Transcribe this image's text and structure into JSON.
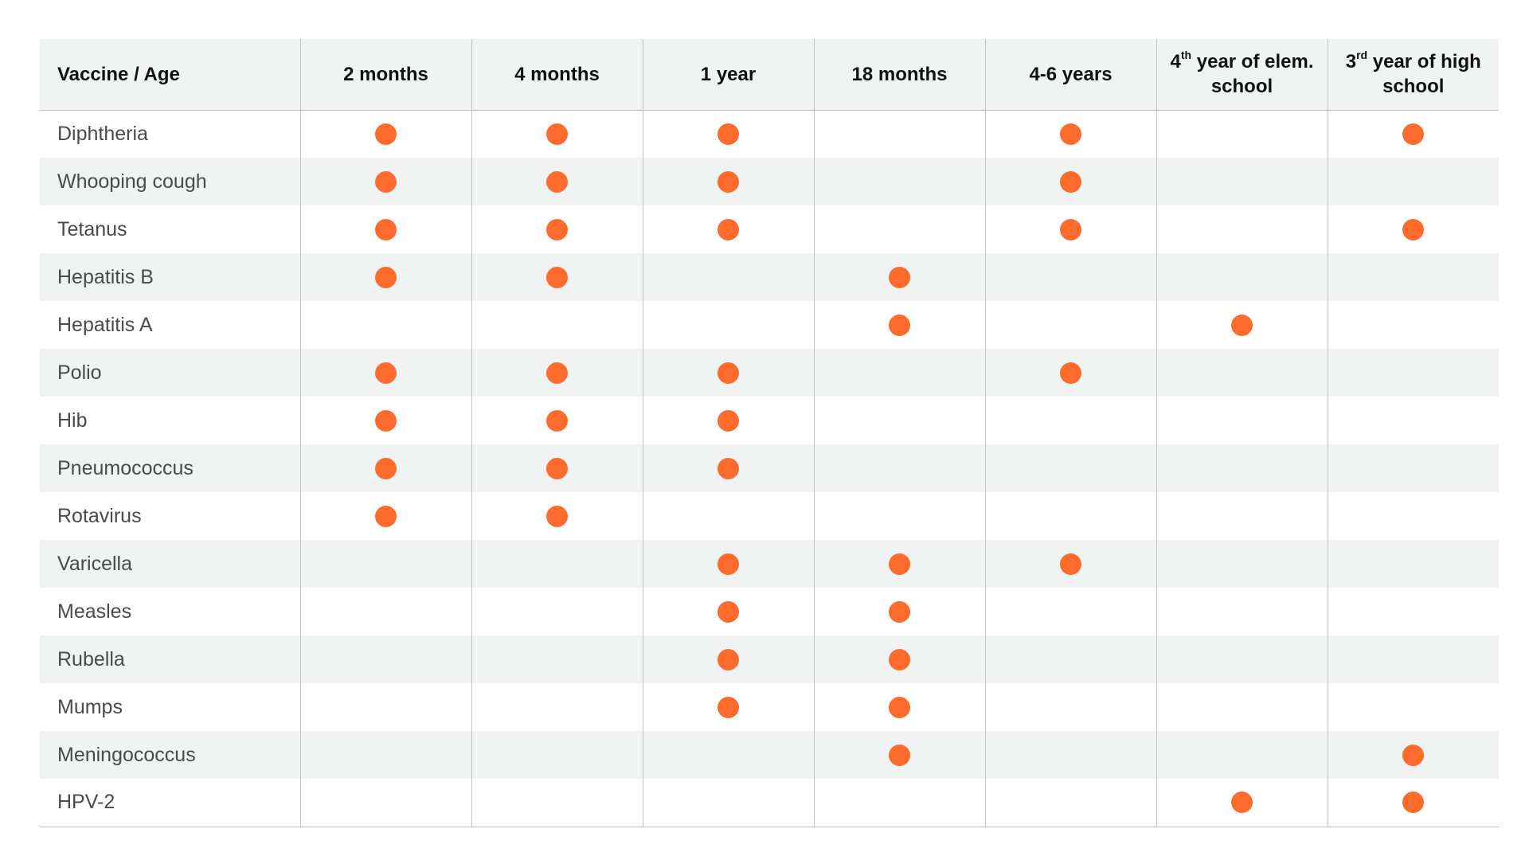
{
  "accent_color": "#ff6b2c",
  "dot_icon": "filled-circle",
  "header": {
    "first_column": "Vaccine / Age",
    "ages": [
      {
        "text": "2 months"
      },
      {
        "text": "4 months"
      },
      {
        "text": "1 year"
      },
      {
        "text": "18 months"
      },
      {
        "text": "4-6 years"
      },
      {
        "text": "4",
        "sup": "th",
        "after": " year of elem. school"
      },
      {
        "text": "3",
        "sup": "rd",
        "after": " year of high school"
      }
    ]
  },
  "rows": [
    {
      "vaccine": "Diphtheria",
      "doses": [
        true,
        true,
        true,
        false,
        true,
        false,
        true
      ]
    },
    {
      "vaccine": "Whooping cough",
      "doses": [
        true,
        true,
        true,
        false,
        true,
        false,
        false
      ]
    },
    {
      "vaccine": "Tetanus",
      "doses": [
        true,
        true,
        true,
        false,
        true,
        false,
        true
      ]
    },
    {
      "vaccine": "Hepatitis B",
      "doses": [
        true,
        true,
        false,
        true,
        false,
        false,
        false
      ]
    },
    {
      "vaccine": "Hepatitis A",
      "doses": [
        false,
        false,
        false,
        true,
        false,
        true,
        false
      ]
    },
    {
      "vaccine": "Polio",
      "doses": [
        true,
        true,
        true,
        false,
        true,
        false,
        false
      ]
    },
    {
      "vaccine": "Hib",
      "doses": [
        true,
        true,
        true,
        false,
        false,
        false,
        false
      ]
    },
    {
      "vaccine": "Pneumococcus",
      "doses": [
        true,
        true,
        true,
        false,
        false,
        false,
        false
      ]
    },
    {
      "vaccine": "Rotavirus",
      "doses": [
        true,
        true,
        false,
        false,
        false,
        false,
        false
      ]
    },
    {
      "vaccine": "Varicella",
      "doses": [
        false,
        false,
        true,
        true,
        true,
        false,
        false
      ]
    },
    {
      "vaccine": "Measles",
      "doses": [
        false,
        false,
        true,
        true,
        false,
        false,
        false
      ]
    },
    {
      "vaccine": "Rubella",
      "doses": [
        false,
        false,
        true,
        true,
        false,
        false,
        false
      ]
    },
    {
      "vaccine": "Mumps",
      "doses": [
        false,
        false,
        true,
        true,
        false,
        false,
        false
      ]
    },
    {
      "vaccine": "Meningococcus",
      "doses": [
        false,
        false,
        false,
        true,
        false,
        false,
        true
      ]
    },
    {
      "vaccine": "HPV-2",
      "doses": [
        false,
        false,
        false,
        false,
        false,
        true,
        true
      ]
    }
  ]
}
